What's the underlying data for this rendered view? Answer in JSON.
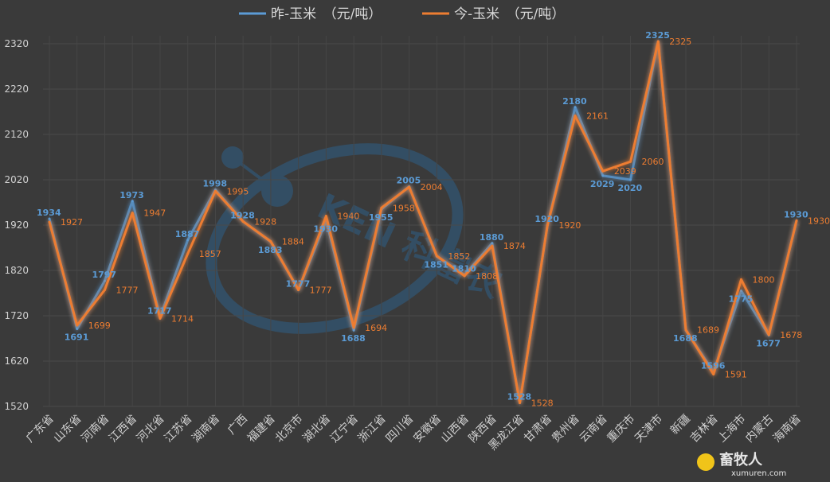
{
  "chart_data": {
    "type": "line",
    "categories": [
      "广东省",
      "山东省",
      "河南省",
      "江西省",
      "河北省",
      "江苏省",
      "湖南省",
      "广西",
      "福建省",
      "北京市",
      "湖北省",
      "辽宁省",
      "浙江省",
      "四川省",
      "安徽省",
      "山西省",
      "陕西省",
      "黑龙江省",
      "甘肃省",
      "贵州省",
      "云南省",
      "重庆市",
      "天津市",
      "新疆",
      "吉林省",
      "上海市",
      "内蒙古",
      "海南省"
    ],
    "series": [
      {
        "name": "昨-玉米　（元/吨）",
        "color": "#5b9bd5",
        "values": [
          1934,
          1691,
          1797,
          1973,
          1717,
          1887,
          1998,
          1928,
          1883,
          1777,
          1930,
          1688,
          1955,
          2005,
          1851,
          1810,
          1880,
          1528,
          1920,
          2180,
          2029,
          2020,
          2325,
          1688,
          1596,
          1775,
          1677,
          1930
        ]
      },
      {
        "name": "今-玉米　（元/吨）",
        "color": "#ed7d31",
        "values": [
          1927,
          1699,
          1777,
          1947,
          1714,
          1857,
          1995,
          1928,
          1884,
          1777,
          1940,
          1694,
          1958,
          2004,
          1852,
          1808,
          1874,
          1528,
          1920,
          2161,
          2039,
          2060,
          2325,
          1689,
          1591,
          1800,
          1678,
          1930
        ]
      }
    ],
    "ylim": [
      1520,
      2320
    ],
    "yticks": [
      1520,
      1620,
      1720,
      1820,
      1920,
      2020,
      2120,
      2220,
      2320
    ],
    "grid": true,
    "legend_position": "top"
  },
  "watermark": {
    "text": "KEN 科富农"
  },
  "logo": {
    "name": "畜牧人",
    "url": "xumuren.com"
  }
}
